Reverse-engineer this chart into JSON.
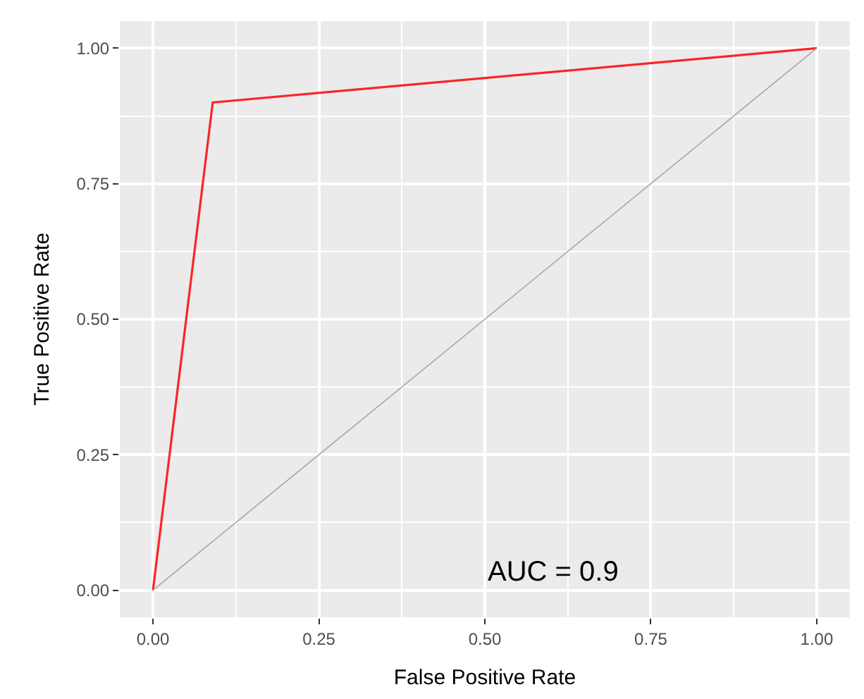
{
  "chart_data": {
    "type": "line",
    "xlabel": "False Positive Rate",
    "ylabel": "True Positive Rate",
    "x": [
      0,
      0.09,
      1
    ],
    "series": [
      {
        "color": "#f8262a",
        "values": [
          0,
          0.9,
          1
        ]
      },
      {
        "type": "line",
        "color": "#a8a8a8",
        "x": [
          0,
          1
        ],
        "values": [
          0,
          1
        ]
      }
    ],
    "xlim": [
      -0.05,
      1.05
    ],
    "ylim": [
      -0.05,
      1.05
    ],
    "xticks": [
      {
        "value": 0,
        "label": "0.00"
      },
      {
        "value": 0.25,
        "label": "0.25"
      },
      {
        "value": 0.5,
        "label": "0.50"
      },
      {
        "value": 0.75,
        "label": "0.75"
      },
      {
        "value": 1,
        "label": "1.00"
      }
    ],
    "yticks": [
      {
        "value": 0,
        "label": "0.00"
      },
      {
        "value": 0.25,
        "label": "0.25"
      },
      {
        "value": 0.5,
        "label": "0.50"
      },
      {
        "value": 0.75,
        "label": "0.75"
      },
      {
        "value": 1,
        "label": "1.00"
      }
    ],
    "grid": true,
    "annotations": [
      "AUC = 0.9"
    ]
  }
}
